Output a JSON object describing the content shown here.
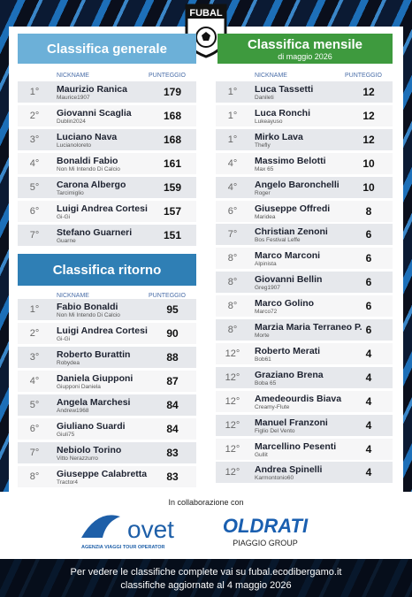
{
  "logo": "FUBAL",
  "generale": {
    "title": "Classifica generale",
    "col_nickname": "NICKNAME",
    "col_points": "PUNTEGGIO",
    "rows": [
      {
        "rank": "1°",
        "name": "Maurizio Ranica",
        "nickname": "Maurice1907",
        "points": 179
      },
      {
        "rank": "2°",
        "name": "Giovanni Scaglia",
        "nickname": "Dublin2024",
        "points": 168
      },
      {
        "rank": "3°",
        "name": "Luciano Nava",
        "nickname": "Lucianoloreto",
        "points": 168
      },
      {
        "rank": "4°",
        "name": "Bonaldi Fabio",
        "nickname": "Non Mi Intendo Di Calcio",
        "points": 161
      },
      {
        "rank": "5°",
        "name": "Carona Albergo",
        "nickname": "Tarcimiglio",
        "points": 159
      },
      {
        "rank": "6°",
        "name": "Luigi Andrea Cortesi",
        "nickname": "Gi-Gi",
        "points": 157
      },
      {
        "rank": "7°",
        "name": "Stefano Guarneri",
        "nickname": "Guarne",
        "points": 151
      }
    ]
  },
  "ritorno": {
    "title": "Classifica ritorno",
    "rows": [
      {
        "rank": "1°",
        "name": "Fabio Bonaldi",
        "nickname": "Non Mi Intendo Di Calcio",
        "points": 95
      },
      {
        "rank": "2°",
        "name": "Luigi Andrea Cortesi",
        "nickname": "Gi-Gi",
        "points": 90
      },
      {
        "rank": "3°",
        "name": "Roberto Burattin",
        "nickname": "Robydea",
        "points": 88
      },
      {
        "rank": "4°",
        "name": "Daniela Giupponi",
        "nickname": "Giupponi Daniela",
        "points": 87
      },
      {
        "rank": "5°",
        "name": "Angela Marchesi",
        "nickname": "Andrew1968",
        "points": 84
      },
      {
        "rank": "6°",
        "name": "Giuliano Suardi",
        "nickname": "Giuli75",
        "points": 84
      },
      {
        "rank": "7°",
        "name": "Nebiolo Torino",
        "nickname": "Vitto Nerazzurro",
        "points": 83
      },
      {
        "rank": "8°",
        "name": "Giuseppe Calabretta",
        "nickname": "Tractor4",
        "points": 83
      }
    ]
  },
  "mensile": {
    "title": "Classifica mensile",
    "subtitle": "di maggio 2026",
    "col_nickname": "NICKNAME",
    "col_points": "PUNTEGGIO",
    "rows": [
      {
        "rank": "1°",
        "name": "Luca Tassetti",
        "nickname": "Danileti",
        "points": 12
      },
      {
        "rank": "1°",
        "name": "Luca Ronchi",
        "nickname": "Lukeayuso",
        "points": 12
      },
      {
        "rank": "1°",
        "name": "Mirko Lava",
        "nickname": "Thefly",
        "points": 12
      },
      {
        "rank": "4°",
        "name": "Massimo Belotti",
        "nickname": "Max 65",
        "points": 10
      },
      {
        "rank": "4°",
        "name": "Angelo Baronchelli",
        "nickname": "Roger",
        "points": 10
      },
      {
        "rank": "6°",
        "name": "Giuseppe Offredi",
        "nickname": "Maridea",
        "points": 8
      },
      {
        "rank": "7°",
        "name": "Christian Zenoni",
        "nickname": "Bos Festival Leffe",
        "points": 6
      },
      {
        "rank": "8°",
        "name": "Marco Marconi",
        "nickname": "Alpinista",
        "points": 6
      },
      {
        "rank": "8°",
        "name": "Giovanni Bellin",
        "nickname": "Greg1907",
        "points": 6
      },
      {
        "rank": "8°",
        "name": "Marco Golino",
        "nickname": "Marco72",
        "points": 6
      },
      {
        "rank": "8°",
        "name": "Marzia Maria Terraneo P.",
        "nickname": "Morte",
        "points": 6
      },
      {
        "rank": "12°",
        "name": "Roberto Merati",
        "nickname": "Bob61",
        "points": 4
      },
      {
        "rank": "12°",
        "name": "Graziano Brena",
        "nickname": "Boba 65",
        "points": 4
      },
      {
        "rank": "12°",
        "name": "Amedeourdis Biava",
        "nickname": "Creamy-Flute",
        "points": 4
      },
      {
        "rank": "12°",
        "name": "Manuel Franzoni",
        "nickname": "Figlio Del Vento",
        "points": 4
      },
      {
        "rank": "12°",
        "name": "Marcellino Pesenti",
        "nickname": "Gullit",
        "points": 4
      },
      {
        "rank": "12°",
        "name": "Andrea Spinelli",
        "nickname": "Karmontonio60",
        "points": 4
      }
    ]
  },
  "partners": {
    "label": "In collaborazione con",
    "ovet": "ovet",
    "ovet_tagline": "AGENZIA VIAGGI TOUR OPERATOR",
    "oldrati": "OLDRATI",
    "oldrati_tagline": "PIAGGIO GROUP"
  },
  "footer": {
    "line1": "Per vedere le classifiche complete vai su fubal.ecodibergamo.it",
    "line2": "classifiche aggiornate al 4 maggio 2026"
  }
}
